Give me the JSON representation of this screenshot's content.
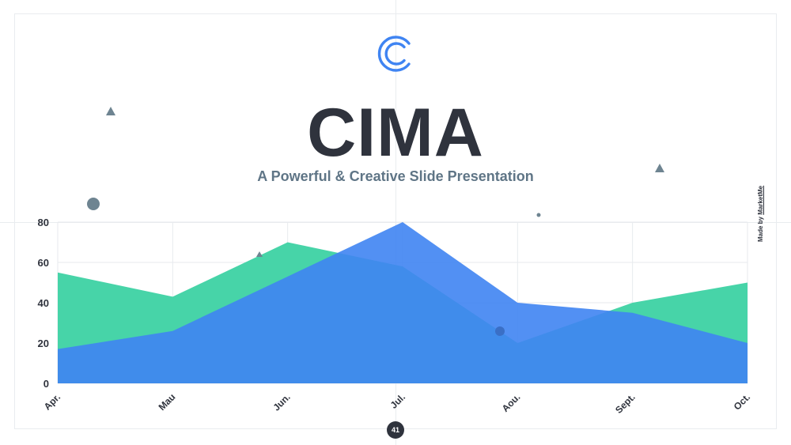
{
  "slide": {
    "title": "CIMA",
    "subtitle": "A Powerful & Creative Slide Presentation",
    "credit_prefix": "Made by ",
    "credit_brand": "MarketMe",
    "page_number": "41",
    "logo_icon": "double-c-logo-icon"
  },
  "colors": {
    "accent_blue": "#3f84f2",
    "accent_green": "#47d4a8",
    "text_dark": "#2f333d",
    "text_slate": "#5f7586",
    "decor": "#6e8491"
  },
  "chart_data": {
    "type": "area",
    "categories": [
      "Apr.",
      "Mau",
      "Jun.",
      "Jul.",
      "Aou.",
      "Sept.",
      "Oct."
    ],
    "series": [
      {
        "values": [
          55,
          43,
          70,
          58,
          20,
          40,
          50
        ],
        "color": "#47d4a8"
      },
      {
        "values": [
          17,
          26,
          53,
          80,
          40,
          35,
          20
        ],
        "color": "#3f84f2"
      }
    ],
    "ylim": [
      0,
      80
    ],
    "yticks": [
      "0",
      "20",
      "40",
      "60",
      "80"
    ],
    "grid": true,
    "legend": "none"
  }
}
